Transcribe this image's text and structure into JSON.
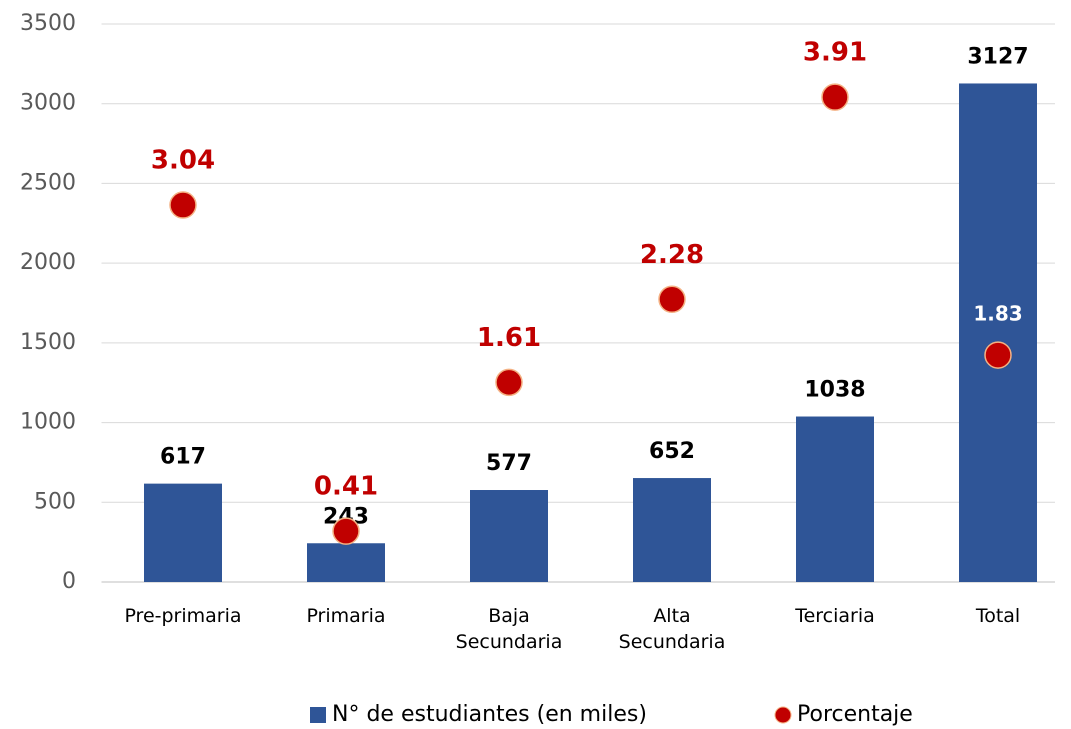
{
  "chart_data": {
    "type": "bar",
    "categories": [
      "Pre-primaria",
      "Primaria",
      "Baja Secundaria",
      "Alta Secundaria",
      "Terciaria",
      "Total"
    ],
    "series": [
      {
        "name": "N° de estudiantes (en miles)",
        "type": "bar",
        "color": "#2f5597",
        "values": [
          617,
          243,
          577,
          652,
          1038,
          3127
        ]
      },
      {
        "name": "Porcentaje",
        "type": "scatter",
        "axis": "y2",
        "color": "#c00000",
        "values": [
          3.04,
          0.41,
          1.61,
          2.28,
          3.91,
          1.83
        ],
        "value_label_colors": [
          "#c00000",
          "#c00000",
          "#c00000",
          "#c00000",
          "#c00000",
          "#ffffff"
        ]
      }
    ],
    "ylim": [
      0,
      3500
    ],
    "yticks": [
      0,
      500,
      1000,
      1500,
      2000,
      2500,
      3000,
      3500
    ],
    "y2lim": [
      0,
      4.5
    ],
    "grid": true,
    "legend": "bottom"
  }
}
